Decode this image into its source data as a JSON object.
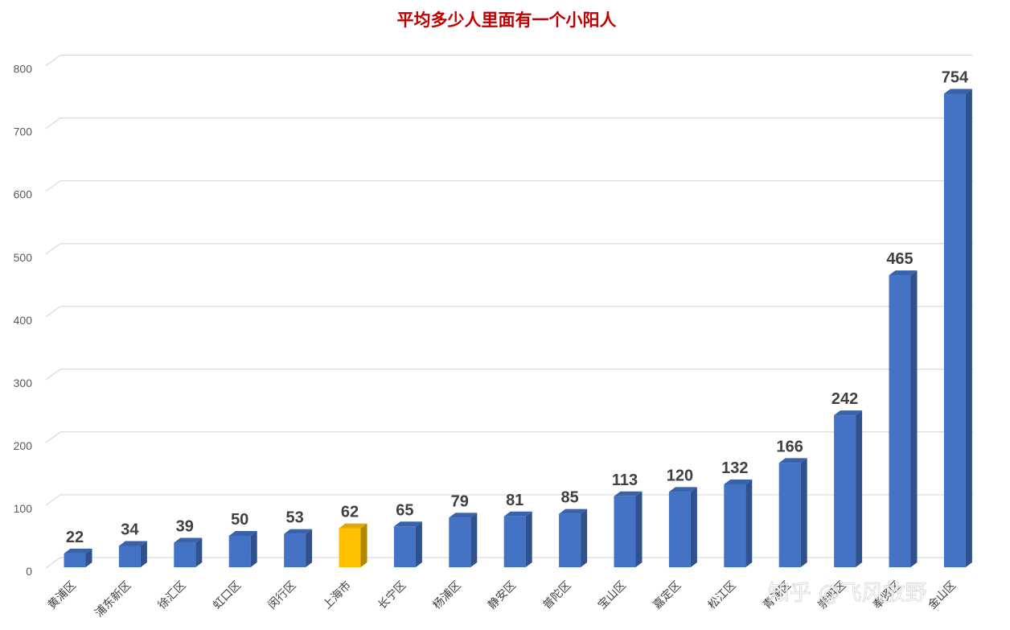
{
  "chart_data": {
    "type": "bar",
    "title": "平均多少人里面有一个小阳人",
    "categories": [
      "黄浦区",
      "浦东新区",
      "徐汇区",
      "虹口区",
      "闵行区",
      "上海市",
      "长宁区",
      "杨浦区",
      "静安区",
      "普陀区",
      "宝山区",
      "嘉定区",
      "松江区",
      "青浦区",
      "崇明区",
      "奉贤区",
      "金山区"
    ],
    "values": [
      22,
      34,
      39,
      50,
      53,
      62,
      65,
      79,
      81,
      85,
      113,
      120,
      132,
      166,
      242,
      465,
      754
    ],
    "ylim": [
      0,
      800
    ],
    "yticks": [
      0,
      100,
      200,
      300,
      400,
      500,
      600,
      700,
      800
    ],
    "xlabel": "",
    "ylabel": "",
    "grid": true,
    "style": "3d-column",
    "colors": {
      "bar": "#4472C4",
      "bar_side": "#2F528F",
      "bar_top": "#3A62AA",
      "highlight": "#FFC000",
      "highlight_side": "#B38600",
      "highlight_top": "#E0A800",
      "title": "#C00000",
      "grid": "#D9D9D9"
    },
    "highlight_category": "上海市"
  },
  "watermark": "知乎 @飞风放野"
}
